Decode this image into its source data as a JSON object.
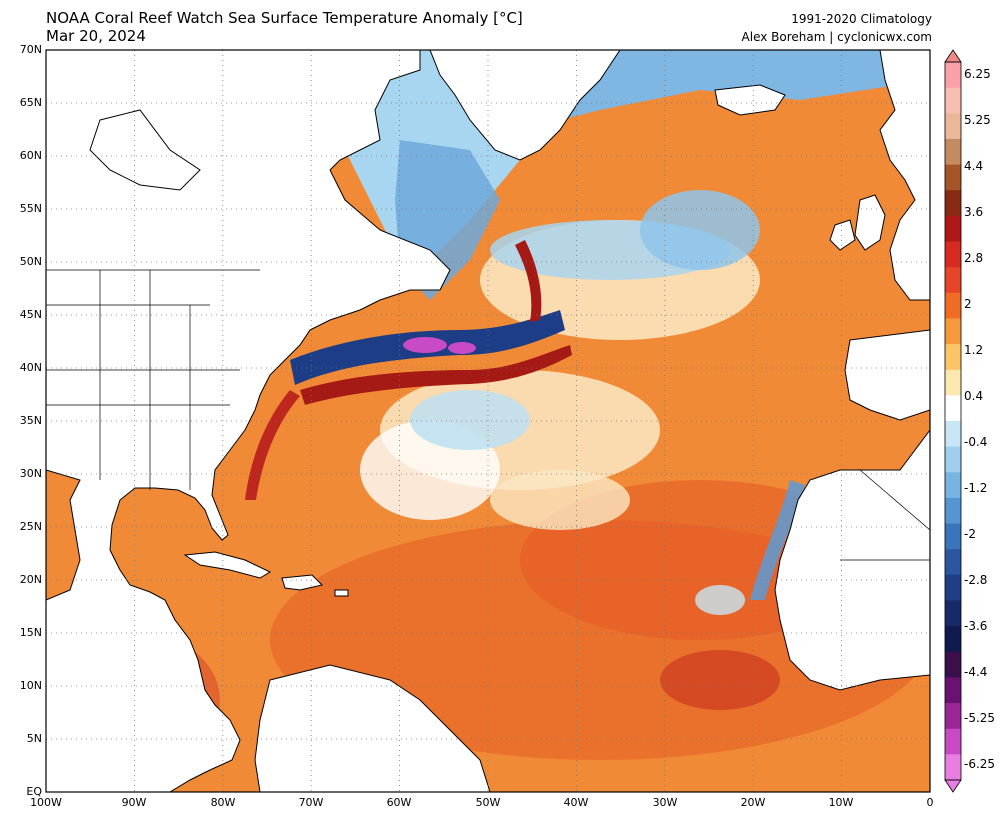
{
  "title": "NOAA Coral Reef Watch Sea Surface Temperature Anomaly [°C]",
  "date": "Mar 20, 2024",
  "climatology": "1991-2020 Climatology",
  "credit": "Alex Boreham | cyclonicwx.com",
  "map": {
    "region": "North Atlantic",
    "projection": "equirectangular",
    "lon_range": [
      -100,
      0
    ],
    "lat_range": [
      0,
      70
    ],
    "grid": "dotted",
    "lat_labels": [
      "70N",
      "65N",
      "60N",
      "55N",
      "50N",
      "45N",
      "40N",
      "35N",
      "30N",
      "25N",
      "20N",
      "15N",
      "10N",
      "5N",
      "EQ"
    ],
    "lon_labels": [
      "100W",
      "90W",
      "80W",
      "70W",
      "60W",
      "50W",
      "40W",
      "30W",
      "20W",
      "10W",
      "0"
    ]
  },
  "colorbar": {
    "labels": [
      "6.25",
      "5.25",
      "4.4",
      "3.6",
      "2.8",
      "2",
      "1.2",
      "0.4",
      "-0.4",
      "-1.2",
      "-2",
      "-2.8",
      "-3.6",
      "-4.4",
      "-5.25",
      "-6.25"
    ],
    "colors": [
      "#f9a0a8",
      "#f6bfb0",
      "#e8b898",
      "#c48a60",
      "#a65528",
      "#8a2a12",
      "#b01818",
      "#d62a22",
      "#e64528",
      "#f06c25",
      "#f59a3c",
      "#fbc466",
      "#fde8b0",
      "#ffffff",
      "#c8e6f5",
      "#9ecfee",
      "#78b4e2",
      "#5595d2",
      "#3a74bb",
      "#2a57a0",
      "#1f3e86",
      "#162a6a",
      "#101a4e",
      "#3a0f4c",
      "#6a1272",
      "#9a2698",
      "#c84ac4",
      "#e87ee2"
    ]
  },
  "features": {
    "land_color": "#ffffff",
    "ocean_base_color": "#f08030"
  }
}
